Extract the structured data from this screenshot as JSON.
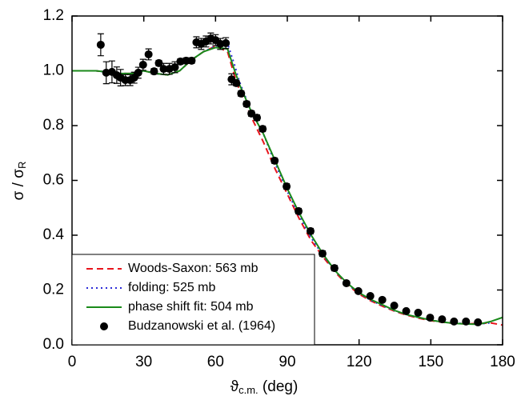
{
  "chart_data": {
    "type": "line-scatter",
    "xlabel": "ϑ",
    "xlabel_sub": "c.m.",
    "xlabel_unit": " (deg)",
    "ylabel": "σ / σ",
    "ylabel_sub": "R",
    "xlim": [
      0,
      180
    ],
    "xticks": [
      0,
      30,
      60,
      90,
      120,
      150,
      180
    ],
    "ylim": [
      0,
      1.2
    ],
    "yticks": [
      {
        "value": 0,
        "label": "0.0"
      },
      0.2,
      0.4,
      0.6,
      0.8,
      {
        "value": 1,
        "label": "1.0"
      },
      1.2
    ],
    "legend": "bottom-left",
    "series": [
      {
        "name": "Woods-Saxon: 563 mb",
        "color": "#e8141c",
        "style": "dashed",
        "x": [
          0,
          5,
          10,
          15,
          20,
          25,
          30,
          35,
          40,
          45,
          50,
          55,
          60,
          65,
          68,
          70,
          75,
          80,
          85,
          90,
          95,
          100,
          105,
          110,
          115,
          120,
          125,
          130,
          135,
          140,
          145,
          150,
          155,
          160,
          165,
          170,
          175,
          180
        ],
        "values": [
          1.0,
          1.0,
          1.0,
          0.995,
          0.99,
          0.99,
          1.0,
          0.99,
          0.985,
          1.0,
          1.04,
          1.07,
          1.09,
          1.07,
          0.98,
          0.93,
          0.83,
          0.74,
          0.64,
          0.55,
          0.46,
          0.38,
          0.32,
          0.265,
          0.22,
          0.185,
          0.16,
          0.14,
          0.122,
          0.108,
          0.097,
          0.088,
          0.082,
          0.078,
          0.076,
          0.078,
          0.08,
          0.072
        ]
      },
      {
        "name": "folding: 525 mb",
        "color": "#2b2bd8",
        "style": "dotted",
        "x": [
          0,
          5,
          10,
          15,
          20,
          25,
          30,
          35,
          40,
          45,
          50,
          55,
          60,
          65,
          68,
          70,
          75,
          80,
          85,
          90,
          95,
          100,
          105,
          110,
          115,
          120,
          125,
          130,
          135,
          140,
          145,
          150,
          155,
          160,
          165,
          170,
          175
        ],
        "values": [
          1.0,
          1.0,
          1.0,
          0.995,
          0.99,
          0.99,
          1.0,
          0.99,
          0.985,
          1.0,
          1.04,
          1.07,
          1.09,
          1.1,
          1.02,
          0.96,
          0.85,
          0.77,
          0.66,
          0.56,
          0.47,
          0.39,
          0.325,
          0.27,
          0.222,
          0.188,
          0.162,
          0.142,
          0.124,
          0.11,
          0.099,
          0.09,
          0.083,
          0.079,
          0.077,
          0.076,
          0.08
        ]
      },
      {
        "name": "phase shift fit: 504 mb",
        "color": "#1a8a1a",
        "style": "solid",
        "x": [
          0,
          5,
          10,
          15,
          20,
          25,
          30,
          35,
          40,
          45,
          50,
          55,
          60,
          65,
          68,
          70,
          75,
          80,
          85,
          90,
          95,
          100,
          105,
          110,
          115,
          120,
          125,
          130,
          135,
          140,
          145,
          150,
          155,
          160,
          165,
          170,
          175,
          180
        ],
        "values": [
          1.0,
          1.0,
          1.0,
          0.995,
          0.99,
          0.99,
          1.0,
          0.99,
          0.985,
          1.0,
          1.04,
          1.07,
          1.085,
          1.08,
          1.0,
          0.95,
          0.85,
          0.77,
          0.67,
          0.57,
          0.48,
          0.4,
          0.33,
          0.27,
          0.225,
          0.19,
          0.165,
          0.145,
          0.125,
          0.11,
          0.1,
          0.09,
          0.083,
          0.078,
          0.076,
          0.075,
          0.085,
          0.1
        ]
      },
      {
        "name": "Budzanowski et al. (1964)",
        "color": "#000000",
        "style": "points",
        "x": [
          12,
          14.3,
          16.7,
          18.7,
          20.3,
          22.3,
          24.3,
          26,
          27.7,
          29.7,
          32,
          34.3,
          36.3,
          38.3,
          40.7,
          43,
          45.3,
          47.7,
          50,
          52,
          54,
          56,
          58,
          60,
          62,
          64.3,
          66.7,
          68.7,
          70.7,
          73,
          75,
          77.3,
          79.7,
          84.7,
          89.7,
          94.7,
          99.7,
          104.7,
          109.7,
          114.7,
          119.7,
          124.7,
          129.7,
          134.7,
          139.7,
          144.7,
          149.7,
          154.7,
          159.7,
          164.7,
          169.7
        ],
        "values": [
          1.095,
          0.993,
          0.996,
          0.984,
          0.975,
          0.966,
          0.966,
          0.975,
          0.993,
          1.022,
          1.06,
          0.998,
          1.028,
          1.007,
          1.007,
          1.013,
          1.034,
          1.037,
          1.037,
          1.104,
          1.098,
          1.107,
          1.118,
          1.112,
          1.098,
          1.101,
          0.969,
          0.955,
          0.917,
          0.879,
          0.844,
          0.829,
          0.788,
          0.672,
          0.578,
          0.488,
          0.415,
          0.333,
          0.28,
          0.225,
          0.196,
          0.178,
          0.164,
          0.143,
          0.123,
          0.117,
          0.099,
          0.093,
          0.085,
          0.085,
          0.082
        ],
        "errors": [
          0.04,
          0.04,
          0.04,
          0.03,
          0.03,
          0.02,
          0.02,
          0.02,
          0.02,
          0.02,
          0.02,
          0.01,
          0.01,
          0.02,
          0.02,
          0.02,
          0.01,
          0.01,
          0.01,
          0.02,
          0.02,
          0.02,
          0.02,
          0.02,
          0.02,
          0.02,
          0.02,
          0.01,
          0.01,
          0.01,
          0.01,
          0.01,
          0.01,
          0.01,
          0.01,
          0.01,
          0.01,
          0.01,
          0.01,
          0.005,
          0.005,
          0.005,
          0.005,
          0.005,
          0.005,
          0.005,
          0.005,
          0.005,
          0.005,
          0.005,
          0.005
        ]
      }
    ]
  }
}
